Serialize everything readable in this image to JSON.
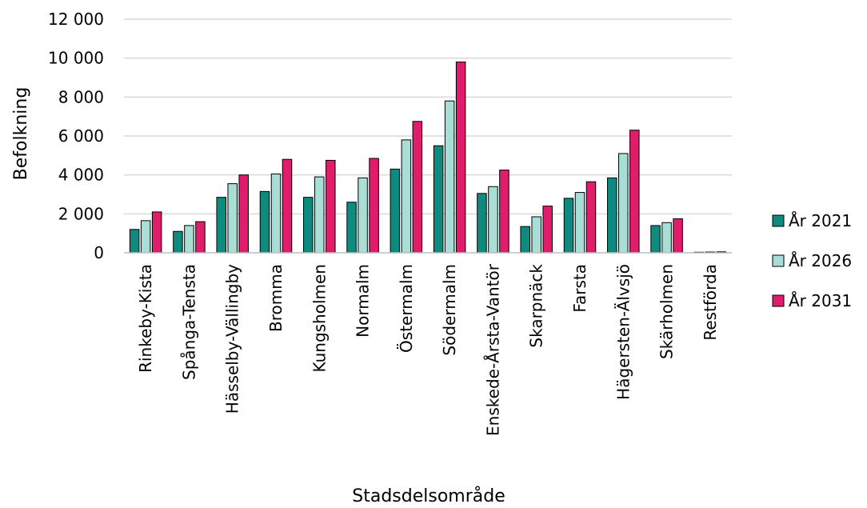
{
  "chart_data": {
    "type": "bar",
    "title": "",
    "xlabel": "Stadsdelsområde",
    "ylabel": "Befolkning",
    "ylim": [
      0,
      12000
    ],
    "yticks": [
      0,
      2000,
      4000,
      6000,
      8000,
      10000,
      12000
    ],
    "ytick_labels": [
      "0",
      "2 000",
      "4 000",
      "6 000",
      "8 000",
      "10 000",
      "12 000"
    ],
    "grid": true,
    "legend_position": "right",
    "categories": [
      "Rinkeby-Kista",
      "Spånga-Tensta",
      "Hässelby-Vällingby",
      "Bromma",
      "Kungsholmen",
      "Normalm",
      "Östermalm",
      "Södermalm",
      "Enskede-Årsta-Vantör",
      "Skarpnäck",
      "Farsta",
      "Hägersten-Älvsjö",
      "Skärholmen",
      "Restförda"
    ],
    "series": [
      {
        "name": "År 2021",
        "color": "#0e8a7e",
        "values": [
          1200,
          1100,
          2850,
          3150,
          2850,
          2600,
          4300,
          5500,
          3050,
          1350,
          2800,
          3850,
          1400,
          30
        ]
      },
      {
        "name": "År 2026",
        "color": "#a9ded6",
        "values": [
          1650,
          1400,
          3550,
          4050,
          3900,
          3850,
          5800,
          7800,
          3400,
          1850,
          3100,
          5100,
          1550,
          40
        ]
      },
      {
        "name": "År 2031",
        "color": "#e01d6a",
        "values": [
          2100,
          1600,
          4000,
          4800,
          4750,
          4850,
          6750,
          9800,
          4250,
          2400,
          3650,
          6300,
          1750,
          50
        ]
      }
    ]
  }
}
